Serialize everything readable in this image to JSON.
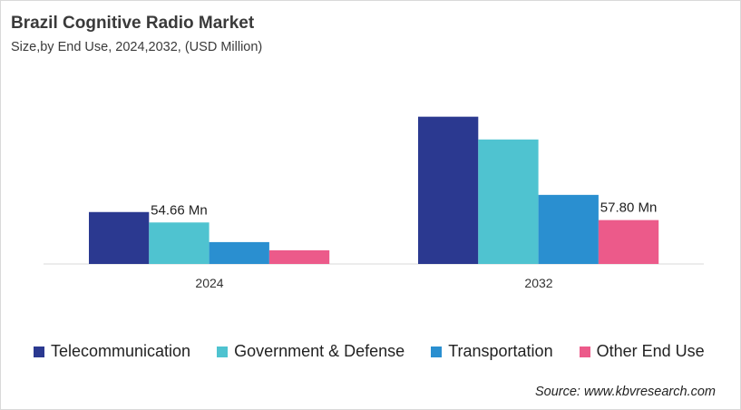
{
  "chart_data": {
    "type": "bar",
    "title": "Brazil Cognitive Radio Market",
    "subtitle": "Size,by End Use, 2024,2032, (USD Million)",
    "categories": [
      "2024",
      "2032"
    ],
    "series": [
      {
        "name": "Telecommunication",
        "color": "#2b3990",
        "values": [
          68.4,
          194.0
        ]
      },
      {
        "name": "Government & Defense",
        "color": "#4fc3d0",
        "values": [
          54.66,
          164.0
        ]
      },
      {
        "name": "Transportation",
        "color": "#2a8fd0",
        "values": [
          28.8,
          91.0
        ]
      },
      {
        "name": "Other End Use",
        "color": "#ec5a8a",
        "values": [
          18.0,
          57.8
        ]
      }
    ],
    "data_labels": [
      {
        "series": 1,
        "category": 0,
        "text": "54.66 Mn"
      },
      {
        "series": 3,
        "category": 1,
        "text": "57.80 Mn"
      }
    ],
    "ylim": [
      0,
      200
    ],
    "grid": false,
    "legend": "bottom",
    "source": "Source: www.kbvresearch.com"
  }
}
